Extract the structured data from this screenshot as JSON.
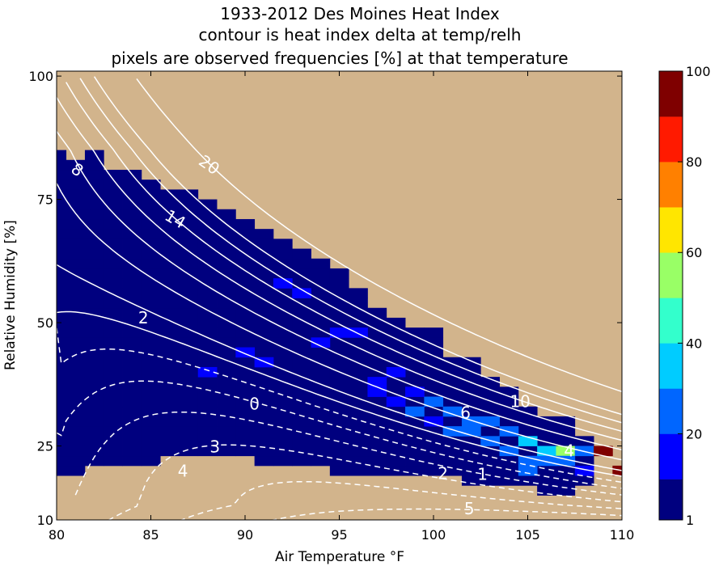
{
  "chart_data": {
    "type": "heatmap",
    "title_lines": [
      "1933-2012 Des Moines Heat Index",
      "contour is heat index delta at temp/relh",
      "pixels are observed frequencies [%] at that temperature"
    ],
    "xlabel": "Air Temperature °F",
    "ylabel": "Relative Humidity [%]",
    "xlim": [
      80,
      110
    ],
    "ylim": [
      10,
      101
    ],
    "x_ticks": [
      80,
      85,
      90,
      95,
      100,
      105,
      110
    ],
    "y_ticks": [
      10,
      25,
      50,
      75,
      100
    ],
    "background_color": "#d2b48c",
    "cell_width_f": 1,
    "cell_height_pct": 2,
    "observed_columns": [
      {
        "t": 80,
        "rh_min": 20,
        "rh_max": 85
      },
      {
        "t": 81,
        "rh_min": 20,
        "rh_max": 83
      },
      {
        "t": 82,
        "rh_min": 22,
        "rh_max": 85
      },
      {
        "t": 83,
        "rh_min": 22,
        "rh_max": 80
      },
      {
        "t": 84,
        "rh_min": 22,
        "rh_max": 80
      },
      {
        "t": 85,
        "rh_min": 22,
        "rh_max": 78
      },
      {
        "t": 86,
        "rh_min": 24,
        "rh_max": 77
      },
      {
        "t": 87,
        "rh_min": 24,
        "rh_max": 76
      },
      {
        "t": 88,
        "rh_min": 24,
        "rh_max": 74
      },
      {
        "t": 89,
        "rh_min": 24,
        "rh_max": 73
      },
      {
        "t": 90,
        "rh_min": 24,
        "rh_max": 71
      },
      {
        "t": 91,
        "rh_min": 22,
        "rh_max": 68
      },
      {
        "t": 92,
        "rh_min": 22,
        "rh_max": 67
      },
      {
        "t": 93,
        "rh_min": 22,
        "rh_max": 65
      },
      {
        "t": 94,
        "rh_min": 22,
        "rh_max": 63
      },
      {
        "t": 95,
        "rh_min": 20,
        "rh_max": 61
      },
      {
        "t": 96,
        "rh_min": 20,
        "rh_max": 57
      },
      {
        "t": 97,
        "rh_min": 20,
        "rh_max": 53
      },
      {
        "t": 98,
        "rh_min": 20,
        "rh_max": 51
      },
      {
        "t": 99,
        "rh_min": 20,
        "rh_max": 48
      },
      {
        "t": 100,
        "rh_min": 20,
        "rh_max": 48
      },
      {
        "t": 101,
        "rh_min": 20,
        "rh_max": 42
      },
      {
        "t": 102,
        "rh_min": 18,
        "rh_max": 42
      },
      {
        "t": 103,
        "rh_min": 18,
        "rh_max": 38
      },
      {
        "t": 104,
        "rh_min": 18,
        "rh_max": 36
      },
      {
        "t": 105,
        "rh_min": 18,
        "rh_max": 32
      },
      {
        "t": 106,
        "rh_min": 16,
        "rh_max": 30
      },
      {
        "t": 107,
        "rh_min": 16,
        "rh_max": 30
      },
      {
        "t": 108,
        "rh_min": 18,
        "rh_max": 26
      }
    ],
    "observed_default_pct": 3,
    "highlight_cells": [
      {
        "t": 90,
        "rh": 44,
        "pct": 12
      },
      {
        "t": 91,
        "rh": 42,
        "pct": 12
      },
      {
        "t": 92,
        "rh": 58,
        "pct": 12
      },
      {
        "t": 93,
        "rh": 56,
        "pct": 12
      },
      {
        "t": 88,
        "rh": 40,
        "pct": 12
      },
      {
        "t": 94,
        "rh": 46,
        "pct": 12
      },
      {
        "t": 95,
        "rh": 48,
        "pct": 12
      },
      {
        "t": 96,
        "rh": 48,
        "pct": 12
      },
      {
        "t": 97,
        "rh": 38,
        "pct": 14
      },
      {
        "t": 97,
        "rh": 36,
        "pct": 14
      },
      {
        "t": 98,
        "rh": 40,
        "pct": 14
      },
      {
        "t": 98,
        "rh": 34,
        "pct": 18
      },
      {
        "t": 99,
        "rh": 36,
        "pct": 14
      },
      {
        "t": 99,
        "rh": 32,
        "pct": 22
      },
      {
        "t": 100,
        "rh": 34,
        "pct": 22
      },
      {
        "t": 100,
        "rh": 30,
        "pct": 18
      },
      {
        "t": 101,
        "rh": 32,
        "pct": 22
      },
      {
        "t": 101,
        "rh": 28,
        "pct": 25
      },
      {
        "t": 102,
        "rh": 30,
        "pct": 25
      },
      {
        "t": 102,
        "rh": 28,
        "pct": 30
      },
      {
        "t": 103,
        "rh": 30,
        "pct": 30
      },
      {
        "t": 103,
        "rh": 26,
        "pct": 28
      },
      {
        "t": 104,
        "rh": 28,
        "pct": 25
      },
      {
        "t": 104,
        "rh": 24,
        "pct": 30
      },
      {
        "t": 105,
        "rh": 26,
        "pct": 32
      },
      {
        "t": 105,
        "rh": 22,
        "pct": 28
      },
      {
        "t": 105,
        "rh": 20,
        "pct": 25
      },
      {
        "t": 106,
        "rh": 24,
        "pct": 35
      },
      {
        "t": 106,
        "rh": 22,
        "pct": 30
      },
      {
        "t": 107,
        "rh": 24,
        "pct": 55
      },
      {
        "t": 107,
        "rh": 22,
        "pct": 25
      },
      {
        "t": 108,
        "rh": 24,
        "pct": 30
      },
      {
        "t": 108,
        "rh": 20,
        "pct": 20
      }
    ],
    "extreme_cells": [
      {
        "t": 109,
        "rh": 24,
        "pct": 100
      },
      {
        "t": 110,
        "rh": 20,
        "pct": 100
      }
    ],
    "contour_levels_solid": [
      1,
      2,
      4,
      6,
      8,
      10,
      12,
      14,
      20
    ],
    "contour_levels_dashed": [
      -5,
      -4,
      -3,
      -2,
      -1,
      0
    ],
    "contour_labels": [
      {
        "text": "20",
        "t": 88.1,
        "rh": 82,
        "angle": 35
      },
      {
        "text": "14",
        "t": 86.3,
        "rh": 71,
        "angle": 30
      },
      {
        "text": "8",
        "t": 81.1,
        "rh": 81,
        "angle": 35
      },
      {
        "text": "2",
        "t": 84.6,
        "rh": 51,
        "angle": 0
      },
      {
        "text": "0",
        "t": 90.5,
        "rh": 33.5,
        "angle": 0
      },
      {
        "text": "6",
        "t": 101.7,
        "rh": 31.7,
        "angle": 0
      },
      {
        "text": "10",
        "t": 104.6,
        "rh": 34,
        "angle": 0
      },
      {
        "text": "4",
        "t": 107.2,
        "rh": 24,
        "angle": 0
      },
      {
        "text": "1",
        "t": 102.6,
        "rh": 19.3,
        "angle": 0
      },
      {
        "text": "2",
        "t": 100.5,
        "rh": 19.4,
        "angle": 0
      },
      {
        "text": "3",
        "t": 88.4,
        "rh": 24.8,
        "angle": 0
      },
      {
        "text": "4",
        "t": 86.7,
        "rh": 19.9,
        "angle": 0
      },
      {
        "text": "5",
        "t": 101.9,
        "rh": 12.3,
        "angle": 0
      }
    ],
    "colorbar": {
      "ticks": [
        1,
        20,
        40,
        60,
        80,
        100
      ],
      "bands": [
        {
          "from": 1,
          "to": 10,
          "color": "#00007f"
        },
        {
          "from": 10,
          "to": 20,
          "color": "#0000ff"
        },
        {
          "from": 20,
          "to": 30,
          "color": "#0066ff"
        },
        {
          "from": 30,
          "to": 40,
          "color": "#00ccff"
        },
        {
          "from": 40,
          "to": 50,
          "color": "#33ffcc"
        },
        {
          "from": 50,
          "to": 60,
          "color": "#99ff66"
        },
        {
          "from": 60,
          "to": 70,
          "color": "#ffe600"
        },
        {
          "from": 70,
          "to": 80,
          "color": "#ff8000"
        },
        {
          "from": 80,
          "to": 90,
          "color": "#ff1a00"
        },
        {
          "from": 90,
          "to": 100,
          "color": "#7f0000"
        }
      ]
    }
  }
}
